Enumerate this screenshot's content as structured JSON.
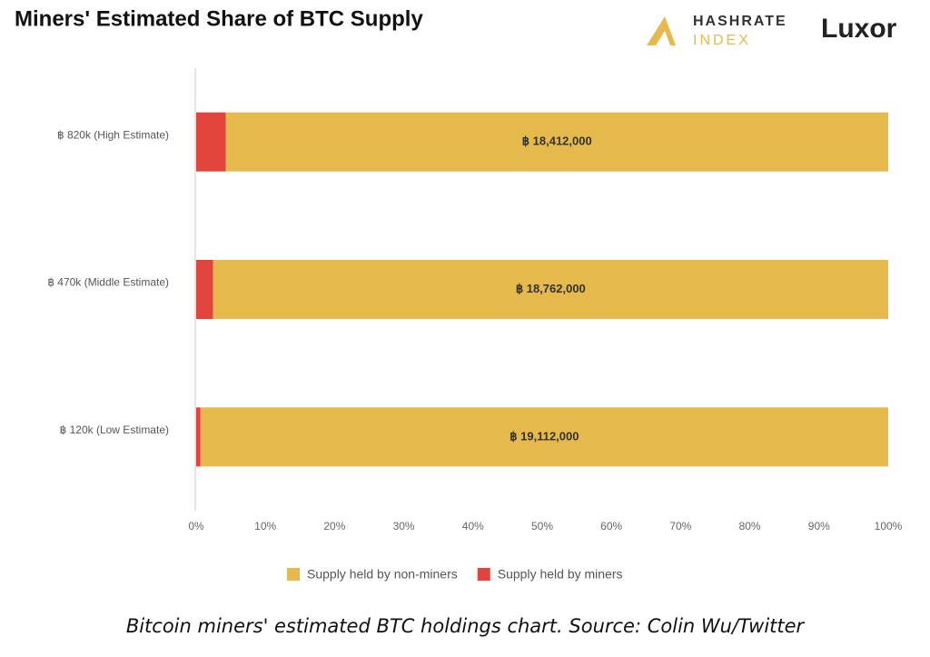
{
  "chart_data": {
    "type": "bar",
    "orientation": "horizontal",
    "stacking": "percent",
    "title": "Miners' Estimated Share of BTC Supply",
    "logos": [
      "HASHRATE",
      "INDEX",
      "Luxor"
    ],
    "categories": [
      "฿ 820k (High Estimate)",
      "฿ 470k (Middle Estimate)",
      "฿ 120k (Low Estimate)"
    ],
    "series": [
      {
        "name": "Supply held by miners",
        "color": "#e0443a",
        "values": [
          820000,
          470000,
          120000
        ]
      },
      {
        "name": "Supply held by non-miners",
        "color": "#e6b94d",
        "values": [
          18412000,
          18762000,
          19112000
        ],
        "value_labels": [
          "฿ 18,412,000",
          "฿ 18,762,000",
          "฿ 19,112,000"
        ]
      }
    ],
    "legend_order": [
      1,
      0
    ],
    "xlim": [
      0,
      100
    ],
    "xticks": [
      {
        "value": 0,
        "label": "0%"
      },
      {
        "value": 10,
        "label": "10%"
      },
      {
        "value": 20,
        "label": "20%"
      },
      {
        "value": 30,
        "label": "30%"
      },
      {
        "value": 40,
        "label": "40%"
      },
      {
        "value": 50,
        "label": "50%"
      },
      {
        "value": 60,
        "label": "60%"
      },
      {
        "value": 70,
        "label": "70%"
      },
      {
        "value": 80,
        "label": "80%"
      },
      {
        "value": 90,
        "label": "90%"
      },
      {
        "value": 100,
        "label": "100%"
      }
    ],
    "grid": false,
    "caption": "Bitcoin miners' estimated BTC holdings chart. Source: Colin Wu/Twitter"
  }
}
